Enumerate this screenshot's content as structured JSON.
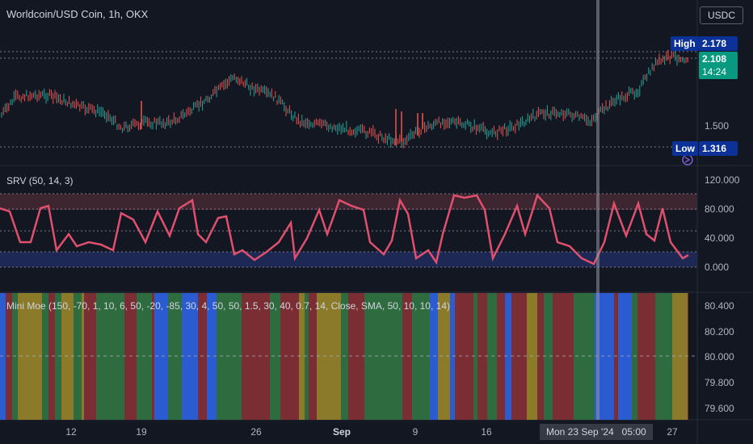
{
  "header": {
    "symbol_title": "Worldcoin/USD Coin, 1h, OKX",
    "currency_button": "USDC"
  },
  "price_pane": {
    "high_label": "High",
    "high_value": "2.178",
    "last_price": "2.108",
    "countdown": "14:24",
    "axis_label": "1.500",
    "low_label": "Low",
    "low_value": "1.316",
    "colors": {
      "up": "#26a69a",
      "down": "#ef5350",
      "last_price_bg": "#089981",
      "tag_bg": "#0c3299"
    }
  },
  "srv_pane": {
    "title": "SRV (50, 14, 3)",
    "axis_labels": [
      "120.000",
      "80.000",
      "40.000",
      "0.000"
    ],
    "colors": {
      "line": "#e0506e",
      "overbought_band": "#4a2a36",
      "oversold_band": "#1f2a5a"
    }
  },
  "moe_pane": {
    "title": "Mini Moe (150, -70, 1, 10, 6, 50, -20, -85, 30, 4, 50, 50, 1.5, 30, 40, 0.7, 14, Close, SMA, 50, 10, 10, 14)",
    "axis_labels": [
      "80.400",
      "80.200",
      "80.000",
      "79.800",
      "79.600"
    ],
    "colors": {
      "green": "#2e6b3f",
      "red": "#7a2e33",
      "olive": "#8a7a2a",
      "blue": "#2a5bd0"
    }
  },
  "x_axis": {
    "ticks": [
      "12",
      "19",
      "26",
      "Sep",
      "9",
      "16",
      "23",
      "27"
    ],
    "crosshair_label": "Mon 23 Sep '24   05:00"
  }
}
